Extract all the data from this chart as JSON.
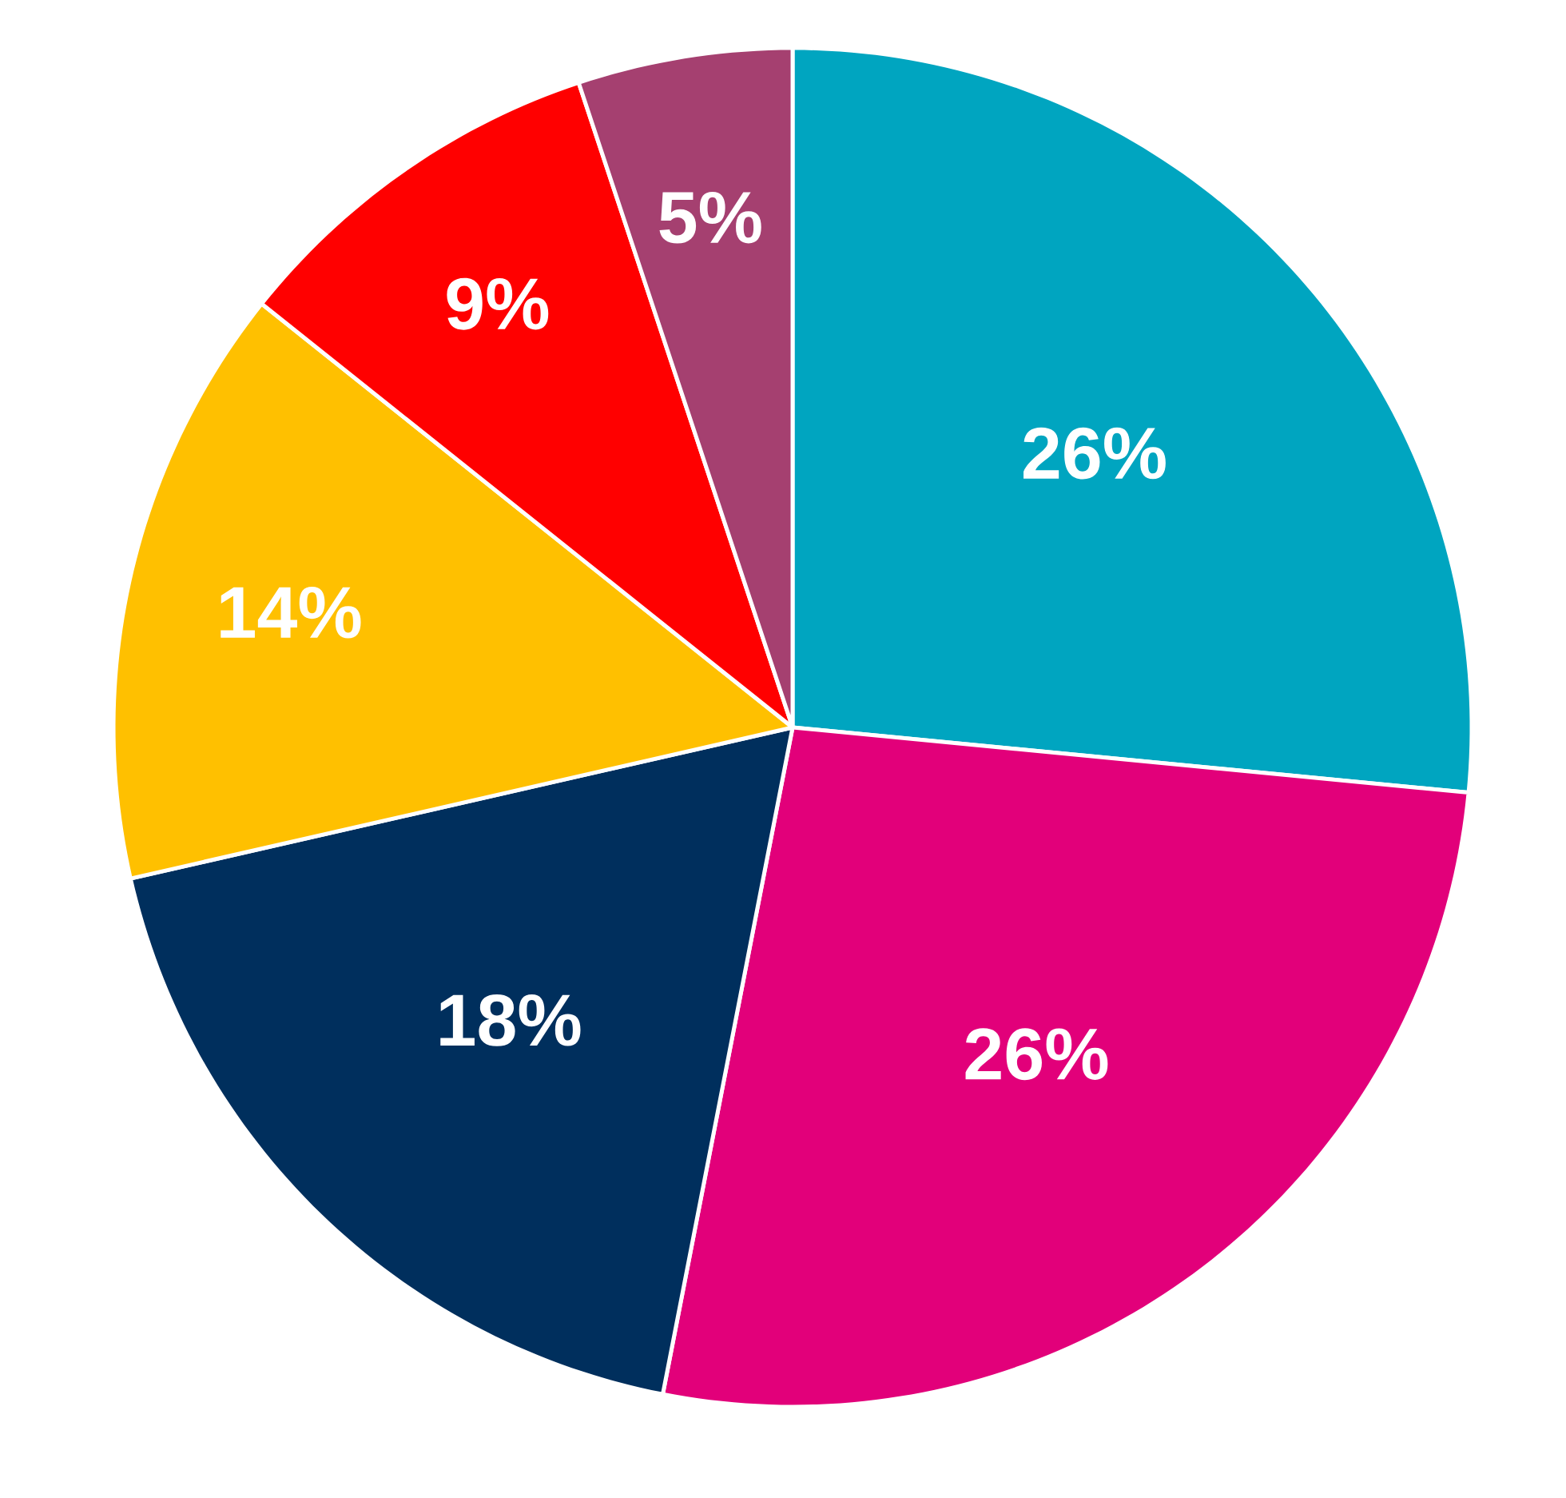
{
  "chart_data": {
    "type": "pie",
    "categories": [
      null,
      null,
      null,
      null,
      null,
      null
    ],
    "values": [
      26,
      26,
      18,
      14,
      9,
      5
    ],
    "colors": [
      "#00a5c0",
      "#e2007a",
      "#002f5d",
      "#ffc000",
      "#ff0000",
      "#a54070"
    ],
    "value_labels": [
      "26%",
      "26%",
      "18%",
      "14%",
      "9%",
      "5%"
    ]
  }
}
